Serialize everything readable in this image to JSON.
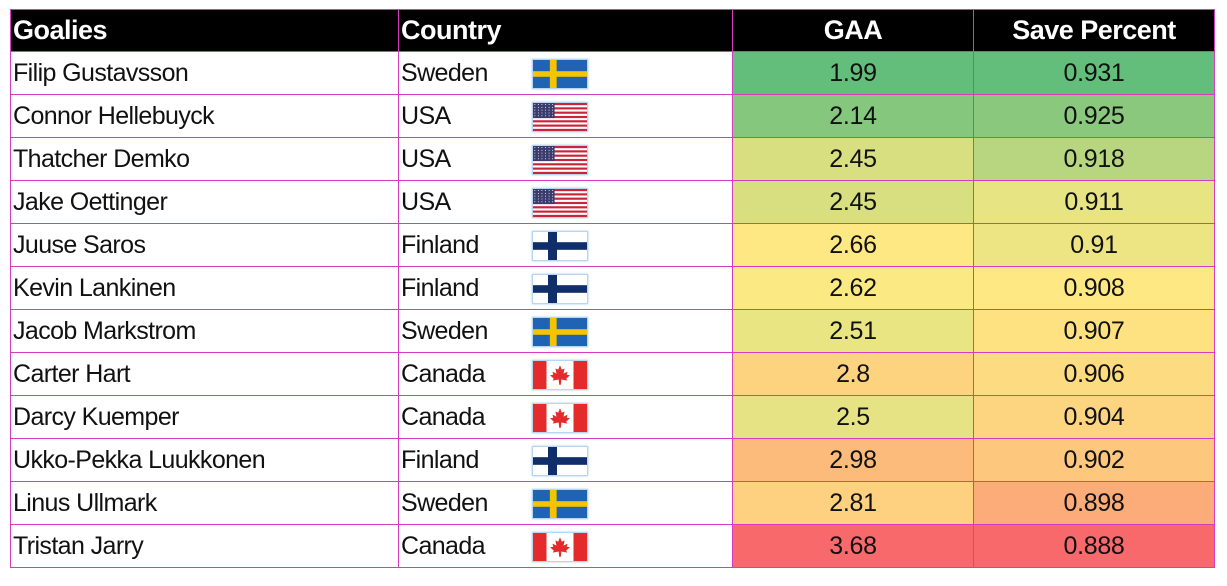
{
  "table": {
    "headers": {
      "goalie": "Goalies",
      "country": "Country",
      "gaa": "GAA",
      "save_percent": "Save Percent"
    },
    "rows": [
      {
        "name": "Filip Gustavsson",
        "country": "Sweden",
        "flag": "sweden-flag-icon",
        "gaa": "1.99",
        "save": "0.931",
        "gaa_color": "#63be7b",
        "save_color": "#63be7b"
      },
      {
        "name": "Connor Hellebuyck",
        "country": "USA",
        "flag": "usa-flag-icon",
        "gaa": "2.14",
        "save": "0.925",
        "gaa_color": "#85c77d",
        "save_color": "#8ac97d"
      },
      {
        "name": "Thatcher Demko",
        "country": "USA",
        "flag": "usa-flag-icon",
        "gaa": "2.45",
        "save": "0.918",
        "gaa_color": "#d7df81",
        "save_color": "#b8d680"
      },
      {
        "name": "Jake Oettinger",
        "country": "USA",
        "flag": "usa-flag-icon",
        "gaa": "2.45",
        "save": "0.911",
        "gaa_color": "#d7df81",
        "save_color": "#e6e483"
      },
      {
        "name": "Juuse Saros",
        "country": "Finland",
        "flag": "finland-flag-icon",
        "gaa": "2.66",
        "save": "0.91",
        "gaa_color": "#fee883",
        "save_color": "#ede583"
      },
      {
        "name": "Kevin Lankinen",
        "country": "Finland",
        "flag": "finland-flag-icon",
        "gaa": "2.62",
        "save": "0.908",
        "gaa_color": "#fbe983",
        "save_color": "#fee883"
      },
      {
        "name": "Jacob Markstrom",
        "country": "Sweden",
        "flag": "sweden-flag-icon",
        "gaa": "2.51",
        "save": "0.907",
        "gaa_color": "#e9e583",
        "save_color": "#fee282"
      },
      {
        "name": "Carter Hart",
        "country": "Canada",
        "flag": "canada-flag-icon",
        "gaa": "2.8",
        "save": "0.906",
        "gaa_color": "#fdd37f",
        "save_color": "#fddc81"
      },
      {
        "name": "Darcy Kuemper",
        "country": "Canada",
        "flag": "canada-flag-icon",
        "gaa": "2.5",
        "save": "0.904",
        "gaa_color": "#e5e383",
        "save_color": "#fdd580"
      },
      {
        "name": "Ukko-Pekka Luukkonen",
        "country": "Finland",
        "flag": "finland-flag-icon",
        "gaa": "2.98",
        "save": "0.902",
        "gaa_color": "#fcbb7b",
        "save_color": "#fdc77d"
      },
      {
        "name": "Linus Ullmark",
        "country": "Sweden",
        "flag": "sweden-flag-icon",
        "gaa": "2.81",
        "save": "0.898",
        "gaa_color": "#fdd17f",
        "save_color": "#fbac78"
      },
      {
        "name": "Tristan Jarry",
        "country": "Canada",
        "flag": "canada-flag-icon",
        "gaa": "3.68",
        "save": "0.888",
        "gaa_color": "#f8696b",
        "save_color": "#f8696b"
      }
    ]
  },
  "colors": {
    "header_bg": "#000000",
    "header_text": "#ffffff",
    "grid_border": "#d63cc0"
  }
}
